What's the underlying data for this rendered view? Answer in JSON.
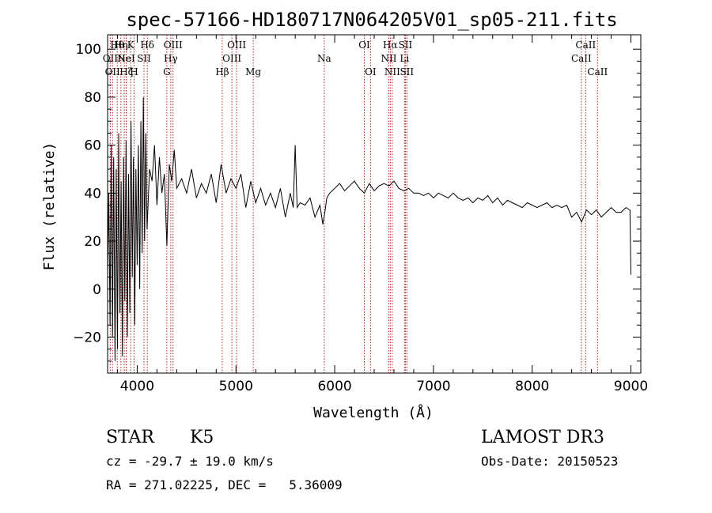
{
  "chart_data": {
    "type": "line",
    "title": "spec-57166-HD180717N064205V01_sp05-211.fits",
    "xlabel": "Wavelength (Å)",
    "ylabel": "Flux (relative)",
    "xlim": [
      3700,
      9100
    ],
    "ylim": [
      -35,
      106
    ],
    "x_ticks": [
      4000,
      5000,
      6000,
      7000,
      8000,
      9000
    ],
    "y_ticks": [
      -20,
      0,
      20,
      40,
      60,
      80,
      100
    ],
    "grid": false,
    "line_color": "#000000",
    "marker_color": "#b22222",
    "series": [
      {
        "x": [
          3700,
          3712,
          3725,
          3737,
          3750,
          3762,
          3775,
          3787,
          3800,
          3812,
          3825,
          3837,
          3850,
          3862,
          3875,
          3887,
          3900,
          3912,
          3925,
          3937,
          3950,
          3962,
          3975,
          3987,
          4000,
          4012,
          4025,
          4037,
          4050,
          4062,
          4075,
          4087,
          4100,
          4125,
          4150,
          4175,
          4200,
          4225,
          4250,
          4275,
          4300,
          4325,
          4350,
          4375,
          4400,
          4450,
          4500,
          4550,
          4600,
          4650,
          4700,
          4750,
          4800,
          4850,
          4900,
          4950,
          5000,
          5050,
          5100,
          5150,
          5200,
          5250,
          5300,
          5350,
          5400,
          5450,
          5500,
          5550,
          5580,
          5600,
          5620,
          5650,
          5700,
          5750,
          5800,
          5850,
          5880,
          5900,
          5920,
          5950,
          6000,
          6050,
          6100,
          6150,
          6200,
          6250,
          6300,
          6350,
          6400,
          6450,
          6500,
          6550,
          6600,
          6650,
          6700,
          6750,
          6800,
          6850,
          6900,
          6950,
          7000,
          7050,
          7100,
          7150,
          7200,
          7250,
          7300,
          7350,
          7400,
          7450,
          7500,
          7550,
          7600,
          7650,
          7700,
          7750,
          7800,
          7850,
          7900,
          7950,
          8000,
          8050,
          8100,
          8150,
          8200,
          8250,
          8300,
          8350,
          8400,
          8450,
          8500,
          8550,
          8600,
          8650,
          8700,
          8750,
          8800,
          8850,
          8900,
          8950,
          8990,
          9000
        ],
        "y": [
          5,
          40,
          -15,
          60,
          -20,
          55,
          -30,
          50,
          -25,
          65,
          -10,
          45,
          -28,
          55,
          -5,
          62,
          -20,
          48,
          -10,
          70,
          5,
          55,
          -15,
          50,
          10,
          60,
          0,
          70,
          15,
          80,
          20,
          65,
          25,
          50,
          45,
          60,
          35,
          55,
          40,
          48,
          18,
          52,
          45,
          58,
          42,
          46,
          40,
          50,
          38,
          44,
          40,
          48,
          36,
          52,
          40,
          46,
          42,
          48,
          34,
          45,
          36,
          42,
          35,
          40,
          34,
          42,
          30,
          40,
          34,
          60,
          34,
          36,
          35,
          38,
          30,
          35,
          27,
          32,
          38,
          40,
          42,
          44,
          41,
          43,
          45,
          42,
          40,
          44,
          41,
          43,
          44,
          43,
          45,
          42,
          41,
          42,
          40,
          40,
          39,
          40,
          38,
          40,
          39,
          38,
          40,
          38,
          37,
          38,
          36,
          38,
          37,
          39,
          36,
          38,
          35,
          37,
          36,
          35,
          34,
          36,
          35,
          34,
          35,
          36,
          34,
          35,
          34,
          35,
          30,
          32,
          28,
          33,
          31,
          33,
          30,
          32,
          34,
          32,
          32,
          34,
          33,
          6
        ]
      }
    ],
    "line_markers": [
      {
        "wavelength": 3727,
        "label": "OII",
        "row": 2
      },
      {
        "wavelength": 3750,
        "label": "OII",
        "row": 3
      },
      {
        "wavelength": 3798,
        "label": "Hθ",
        "row": 1
      },
      {
        "wavelength": 3835,
        "label": "Hη",
        "row": 1
      },
      {
        "wavelength": 3869,
        "label": "Ne",
        "row": 2
      },
      {
        "wavelength": 3889,
        "label": "HeI",
        "row": 2
      },
      {
        "wavelength": 3890,
        "label": "Hζ",
        "row": 3
      },
      {
        "wavelength": 3934,
        "label": "K",
        "row": 1
      },
      {
        "wavelength": 3968,
        "label": "H",
        "row": 3
      },
      {
        "wavelength": 4069,
        "label": "SII",
        "row": 2
      },
      {
        "wavelength": 4102,
        "label": "Hδ",
        "row": 1
      },
      {
        "wavelength": 4300,
        "label": "G",
        "row": 3
      },
      {
        "wavelength": 4340,
        "label": "Hγ",
        "row": 2
      },
      {
        "wavelength": 4363,
        "label": "OIII",
        "row": 1
      },
      {
        "wavelength": 4861,
        "label": "Hβ",
        "row": 3
      },
      {
        "wavelength": 4959,
        "label": "OIII",
        "row": 2
      },
      {
        "wavelength": 5007,
        "label": "OIII",
        "row": 1
      },
      {
        "wavelength": 5175,
        "label": "Mg",
        "row": 3
      },
      {
        "wavelength": 5894,
        "label": "Na",
        "row": 2
      },
      {
        "wavelength": 6300,
        "label": "OI",
        "row": 1
      },
      {
        "wavelength": 6363,
        "label": "OI",
        "row": 3
      },
      {
        "wavelength": 6548,
        "label": "NII",
        "row": 2
      },
      {
        "wavelength": 6563,
        "label": "Hα",
        "row": 1
      },
      {
        "wavelength": 6583,
        "label": "NII",
        "row": 3
      },
      {
        "wavelength": 6707,
        "label": "Li",
        "row": 2
      },
      {
        "wavelength": 6716,
        "label": "SII",
        "row": 1
      },
      {
        "wavelength": 6731,
        "label": "SII",
        "row": 3
      },
      {
        "wavelength": 8498,
        "label": "CaII",
        "row": 2
      },
      {
        "wavelength": 8542,
        "label": "CaII",
        "row": 1
      },
      {
        "wavelength": 8662,
        "label": "CaII",
        "row": 3
      }
    ]
  },
  "info": {
    "class_label": "STAR",
    "subclass": "K5",
    "survey": "LAMOST DR3",
    "redshift": "cz = -29.7 ± 19.0 km/s",
    "obs_date": "Obs-Date: 20150523",
    "coords": "RA = 271.02225, DEC =   5.36009"
  }
}
